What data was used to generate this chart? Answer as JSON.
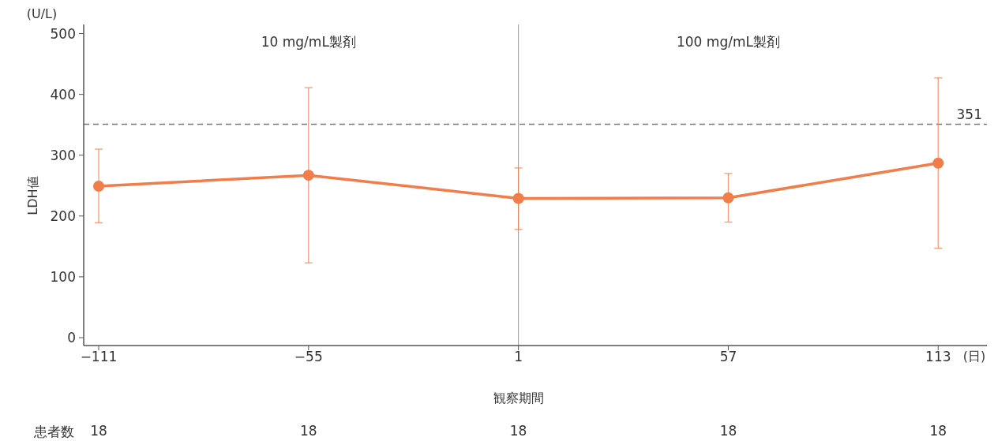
{
  "chart_data": {
    "type": "line",
    "xlabel": "観察期間",
    "ylabel": "LDH値",
    "x": [
      -111,
      -55,
      1,
      57,
      113
    ],
    "series": [
      {
        "color": "#f07d4a",
        "values": [
          249,
          267,
          229,
          230,
          287
        ],
        "errors": [
          [
            189,
            310
          ],
          [
            123,
            411
          ],
          [
            178,
            279
          ],
          [
            190,
            270
          ],
          [
            147,
            427
          ]
        ]
      }
    ],
    "xlim": [
      -115,
      126
    ],
    "xticks": [
      -111,
      -55,
      1,
      57,
      113
    ],
    "ylim": [
      -13,
      515
    ],
    "yticks": [
      0,
      100,
      200,
      300,
      400,
      500
    ],
    "grid": false,
    "legend": false,
    "marker": "circle",
    "line_style": "solid",
    "ref_lines": [
      {
        "axis": "y",
        "value": 351,
        "label": "351",
        "color": "#777777",
        "line_style": "dashed"
      },
      {
        "axis": "x",
        "value": 1,
        "label": null,
        "color": "#999999",
        "line_style": "solid"
      }
    ],
    "annotations": [
      "(U/L)",
      "(日)",
      "10 mg/mL製剤",
      "100 mg/mL製剤",
      "患者数",
      "18",
      "18",
      "18",
      "18",
      "18"
    ]
  }
}
